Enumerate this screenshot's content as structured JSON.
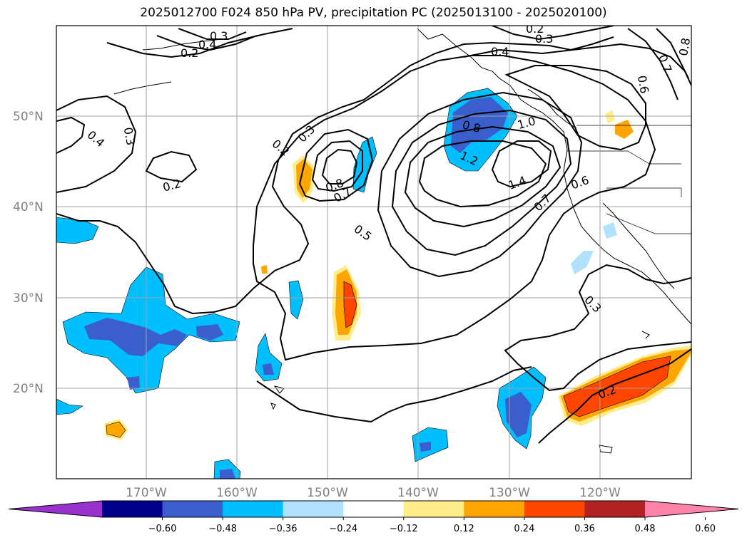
{
  "title": "2025012700 F024 850 hPa PV, precipitation PC (2025013100 - 2025020100)",
  "map": {
    "lat_ticks": [
      "50°N",
      "40°N",
      "30°N",
      "20°N"
    ],
    "lon_ticks": [
      "170°W",
      "160°W",
      "150°W",
      "140°W",
      "130°W",
      "120°W"
    ],
    "contour_labels": [
      "0.2",
      "0.4",
      "0.3",
      "0.2",
      "0.4",
      "0.3",
      "0.8",
      "0.7",
      "0.6",
      "0.3",
      "0.4",
      "0.2",
      "0.2",
      "0.3",
      "0.8",
      "0.7",
      "0.5",
      "0.8",
      "1.0",
      "1.2",
      "1.4",
      "0.6",
      "0.7",
      "0.3",
      "0.2"
    ]
  },
  "colorbar": {
    "ticks": [
      "−0.60",
      "−0.48",
      "−0.36",
      "−0.24",
      "−0.12",
      "0.12",
      "0.24",
      "0.36",
      "0.48",
      "0.60"
    ],
    "colors": [
      "#9932CC",
      "#00008B",
      "#3A5FCD",
      "#00BFFF",
      "#B0E2FF",
      "#FFFFFF",
      "#FFEC8B",
      "#FFA500",
      "#FF4500",
      "#B22222",
      "#FF82AB"
    ]
  }
}
